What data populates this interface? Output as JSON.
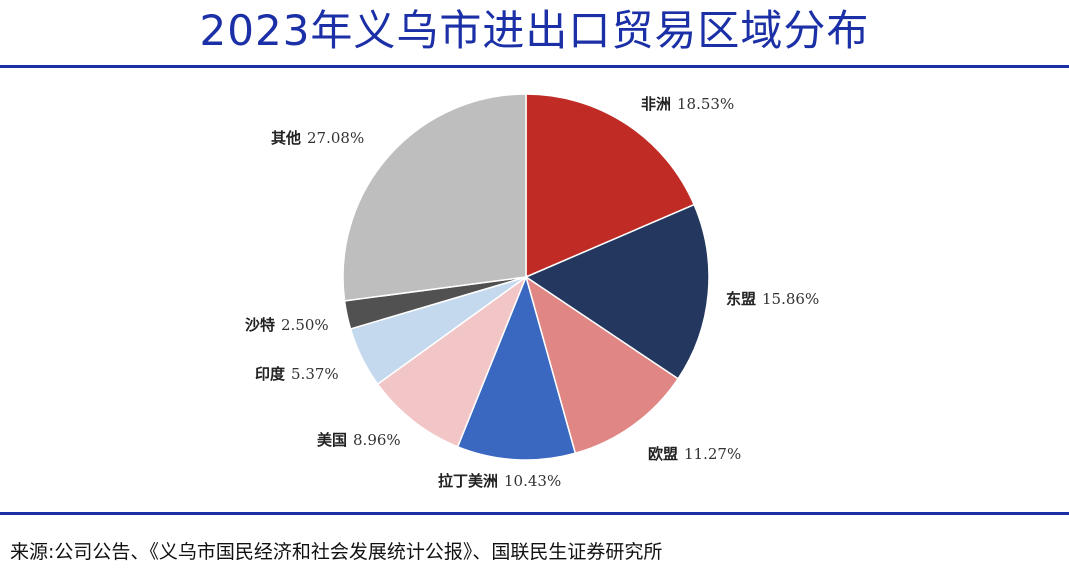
{
  "header": {
    "title": "2023年义乌市进出口贸易区域分布"
  },
  "chart_data": {
    "type": "pie",
    "title": "2023年义乌市进出口贸易区域分布",
    "start": "12 o'clock, clockwise",
    "slices": [
      {
        "name": "非洲",
        "value_label": "18.53%",
        "value": 18.53,
        "color": "#c02c25"
      },
      {
        "name": "东盟",
        "value_label": "15.86%",
        "value": 15.86,
        "color": "#23375f"
      },
      {
        "name": "欧盟",
        "value_label": "11.27%",
        "value": 11.27,
        "color": "#e08684"
      },
      {
        "name": "拉丁美洲",
        "value_label": "10.43%",
        "value": 10.43,
        "color": "#3a67c0"
      },
      {
        "name": "美国",
        "value_label": "8.96%",
        "value": 8.96,
        "color": "#f2c6c7"
      },
      {
        "name": "印度",
        "value_label": "5.37%",
        "value": 5.37,
        "color": "#c5d9ee"
      },
      {
        "name": "沙特",
        "value_label": "2.50%",
        "value": 2.5,
        "color": "#515151"
      },
      {
        "name": "其他",
        "value_label": "27.08%",
        "value": 27.08,
        "color": "#bebebe"
      }
    ]
  },
  "footer": {
    "source": "来源:公司公告、《义乌市国民经济和社会发展统计公报》、国联民生证券研究所"
  }
}
